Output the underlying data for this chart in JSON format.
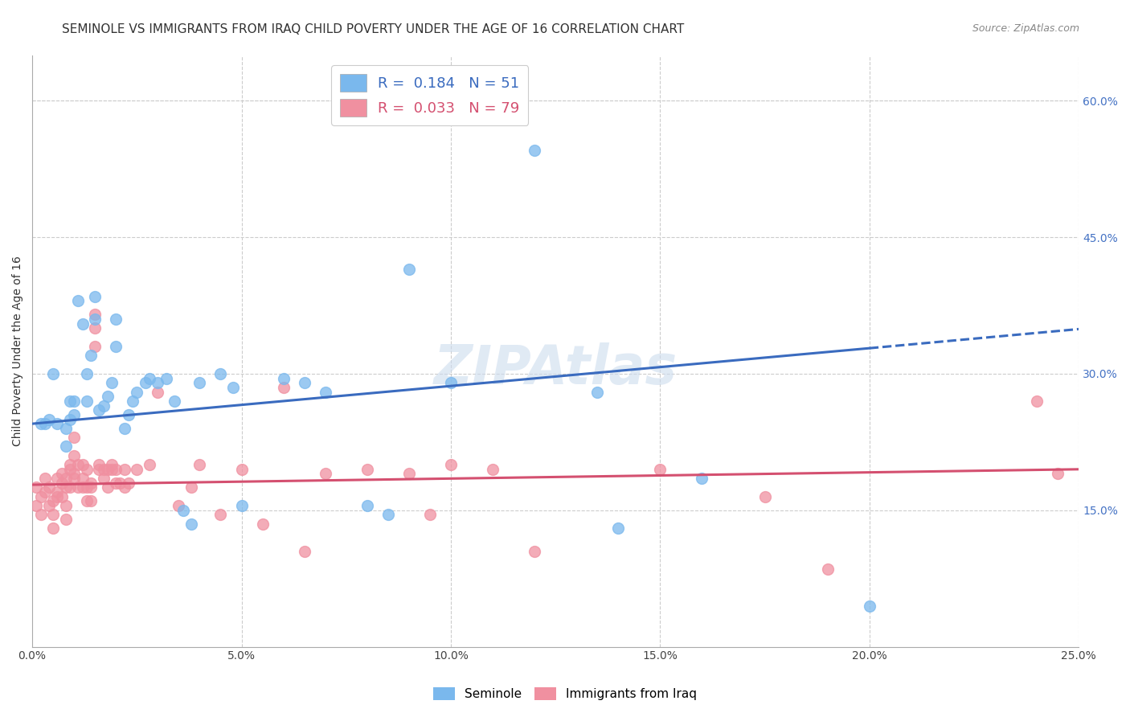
{
  "title": "SEMINOLE VS IMMIGRANTS FROM IRAQ CHILD POVERTY UNDER THE AGE OF 16 CORRELATION CHART",
  "source": "Source: ZipAtlas.com",
  "ylabel": "Child Poverty Under the Age of 16",
  "right_ytick_labels": [
    "15.0%",
    "30.0%",
    "45.0%",
    "60.0%"
  ],
  "right_ytick_values": [
    0.15,
    0.3,
    0.45,
    0.6
  ],
  "xlim": [
    0.0,
    0.25
  ],
  "ylim": [
    0.0,
    0.65
  ],
  "xtick_labels": [
    "0.0%",
    "5.0%",
    "10.0%",
    "15.0%",
    "20.0%",
    "25.0%"
  ],
  "xtick_values": [
    0.0,
    0.05,
    0.1,
    0.15,
    0.2,
    0.25
  ],
  "legend_seminole_R": "0.184",
  "legend_seminole_N": "51",
  "legend_iraq_R": "0.033",
  "legend_iraq_N": "79",
  "color_seminole": "#7ab8ed",
  "color_iraq": "#f090a0",
  "color_trendline_seminole": "#3a6bbf",
  "color_trendline_iraq": "#d45070",
  "title_fontsize": 11,
  "axis_label_fontsize": 10,
  "tick_fontsize": 10,
  "trendline_sem_x0": 0.0,
  "trendline_sem_y0": 0.245,
  "trendline_sem_x1": 0.2,
  "trendline_sem_y1": 0.328,
  "trendline_sem_dash_x0": 0.2,
  "trendline_sem_dash_y0": 0.328,
  "trendline_sem_dash_x1": 0.25,
  "trendline_sem_dash_y1": 0.349,
  "trendline_iraq_x0": 0.0,
  "trendline_iraq_y0": 0.178,
  "trendline_iraq_x1": 0.25,
  "trendline_iraq_y1": 0.195,
  "seminole_x": [
    0.002,
    0.003,
    0.004,
    0.005,
    0.006,
    0.008,
    0.008,
    0.009,
    0.009,
    0.01,
    0.01,
    0.011,
    0.012,
    0.013,
    0.013,
    0.014,
    0.015,
    0.015,
    0.016,
    0.017,
    0.018,
    0.019,
    0.02,
    0.02,
    0.022,
    0.023,
    0.024,
    0.025,
    0.027,
    0.028,
    0.03,
    0.032,
    0.034,
    0.036,
    0.038,
    0.04,
    0.045,
    0.048,
    0.05,
    0.06,
    0.065,
    0.07,
    0.08,
    0.085,
    0.09,
    0.1,
    0.12,
    0.135,
    0.14,
    0.16,
    0.2
  ],
  "seminole_y": [
    0.245,
    0.245,
    0.25,
    0.3,
    0.245,
    0.22,
    0.24,
    0.25,
    0.27,
    0.255,
    0.27,
    0.38,
    0.355,
    0.27,
    0.3,
    0.32,
    0.36,
    0.385,
    0.26,
    0.265,
    0.275,
    0.29,
    0.33,
    0.36,
    0.24,
    0.255,
    0.27,
    0.28,
    0.29,
    0.295,
    0.29,
    0.295,
    0.27,
    0.15,
    0.135,
    0.29,
    0.3,
    0.285,
    0.155,
    0.295,
    0.29,
    0.28,
    0.155,
    0.145,
    0.415,
    0.29,
    0.545,
    0.28,
    0.13,
    0.185,
    0.045
  ],
  "iraq_x": [
    0.001,
    0.001,
    0.002,
    0.002,
    0.003,
    0.003,
    0.004,
    0.004,
    0.005,
    0.005,
    0.005,
    0.006,
    0.006,
    0.006,
    0.007,
    0.007,
    0.007,
    0.008,
    0.008,
    0.008,
    0.008,
    0.009,
    0.009,
    0.009,
    0.01,
    0.01,
    0.01,
    0.01,
    0.011,
    0.011,
    0.012,
    0.012,
    0.012,
    0.013,
    0.013,
    0.013,
    0.014,
    0.014,
    0.014,
    0.015,
    0.015,
    0.015,
    0.016,
    0.016,
    0.017,
    0.017,
    0.018,
    0.018,
    0.019,
    0.019,
    0.02,
    0.02,
    0.021,
    0.022,
    0.022,
    0.023,
    0.025,
    0.028,
    0.03,
    0.035,
    0.038,
    0.04,
    0.045,
    0.05,
    0.055,
    0.06,
    0.065,
    0.07,
    0.08,
    0.09,
    0.095,
    0.1,
    0.11,
    0.12,
    0.15,
    0.175,
    0.19,
    0.24,
    0.245
  ],
  "iraq_y": [
    0.175,
    0.155,
    0.165,
    0.145,
    0.185,
    0.17,
    0.175,
    0.155,
    0.16,
    0.145,
    0.13,
    0.17,
    0.185,
    0.165,
    0.18,
    0.19,
    0.165,
    0.185,
    0.175,
    0.155,
    0.14,
    0.195,
    0.175,
    0.2,
    0.19,
    0.185,
    0.21,
    0.23,
    0.2,
    0.175,
    0.185,
    0.2,
    0.175,
    0.195,
    0.175,
    0.16,
    0.18,
    0.175,
    0.16,
    0.35,
    0.365,
    0.33,
    0.2,
    0.195,
    0.195,
    0.185,
    0.195,
    0.175,
    0.195,
    0.2,
    0.195,
    0.18,
    0.18,
    0.195,
    0.175,
    0.18,
    0.195,
    0.2,
    0.28,
    0.155,
    0.175,
    0.2,
    0.145,
    0.195,
    0.135,
    0.285,
    0.105,
    0.19,
    0.195,
    0.19,
    0.145,
    0.2,
    0.195,
    0.105,
    0.195,
    0.165,
    0.085,
    0.27,
    0.19
  ]
}
